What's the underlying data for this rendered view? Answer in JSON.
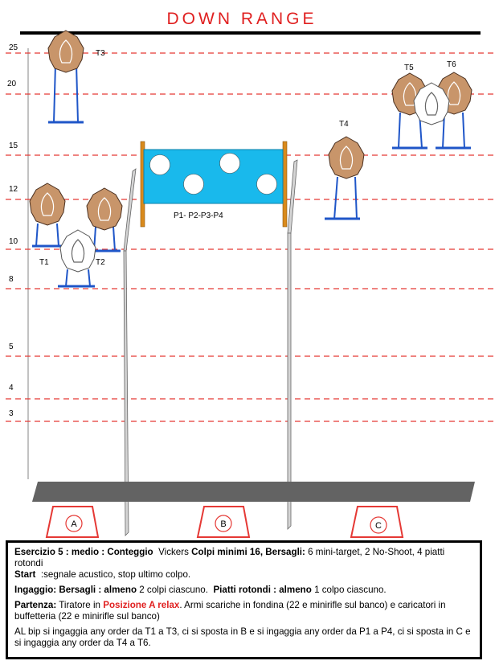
{
  "title": "DOWN RANGE",
  "distance_labels": [
    "25",
    "20",
    "15",
    "12",
    "10",
    "8",
    "5",
    "4",
    "3"
  ],
  "targets": {
    "T1": "T1",
    "T2": "T2",
    "T3": "T3",
    "T4": "T4",
    "T5": "T5",
    "T6": "T6"
  },
  "plates_label": "P1- P2-P3-P4",
  "positions": {
    "A": "A",
    "B": "B",
    "C": "C"
  },
  "colors": {
    "title_red": "#e02020",
    "range_line_red": "#e53935",
    "target_tan": "#c8956a",
    "plate_board_blue": "#19b9ec",
    "stand_blue": "#1f56c8",
    "platform_gray": "#636363",
    "wall_gray": "#d4d4d4",
    "post_orange": "#d98a1c"
  },
  "info": {
    "line1": {
      "esercizio": "Esercizio 5 : medio : Conteggio",
      "vickers": "Vickers",
      "colpi_minimi": "Colpi minimi 16, Bersagli:",
      "rest": "6 mini-target, 2 No-Shoot, 4 piatti rotondi"
    },
    "line2": {
      "start_label": "Start",
      "start_text": ":segnale acustico, stop ultimo colpo."
    },
    "line3": {
      "ingaggio_label": "Ingaggio: Bersagli : almeno",
      "ingaggio_text": "2 colpi ciascuno.",
      "piatti_label": "Piatti  rotondi : almeno",
      "piatti_text": "1 colpo ciascuno."
    },
    "line4": {
      "partenza_label": "Partenza:",
      "partenza_pre": "Tiratore in",
      "posizione": "Posizione A relax",
      "partenza_text": ". Armi scariche in fondina (22 e minirifle sul banco) e caricatori in buffetteria (22 e minirifle sul banco)"
    },
    "line5": "AL bip si ingaggia any order da T1 a T3, ci si sposta in B e si ingaggia any order da P1 a P4, ci si sposta in C e si ingaggia any order da T4 a T6."
  }
}
